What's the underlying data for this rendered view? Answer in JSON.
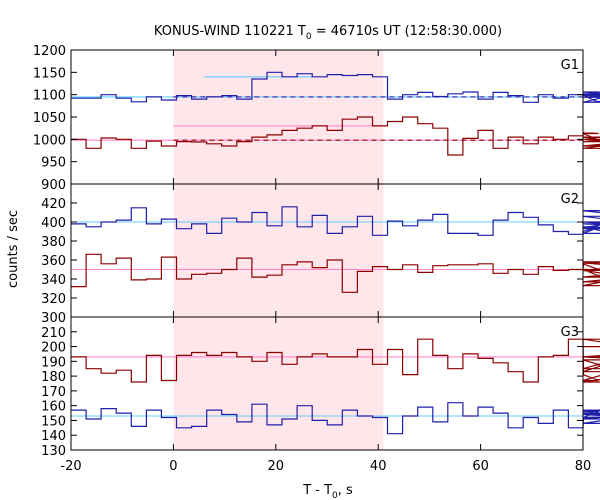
{
  "title": {
    "prefix": "KONUS-WIND 110221 T",
    "sub": "0",
    "suffix": " = 46710s UT (12:58:30.000)"
  },
  "xlabel": {
    "prefix": "T - T",
    "sub": "0",
    "suffix": ", s"
  },
  "ylabel": "counts / sec",
  "colors": {
    "blue": "#1f1fa8",
    "red": "#8b0000",
    "cyan": "#66ccff",
    "pink": "#ff88cc",
    "shade": "#ffe6ea",
    "frame": "#000000"
  },
  "chart_data": [
    {
      "type": "line",
      "panel": "G1",
      "xlim": [
        -20,
        80
      ],
      "ylim": [
        900,
        1200
      ],
      "x_ticks": [
        "-20",
        "0",
        "20",
        "40",
        "60",
        "80"
      ],
      "y_ticks": [
        "900",
        "950",
        "1000",
        "1050",
        "1100",
        "1150",
        "1200"
      ],
      "shaded_interval": [
        0,
        41
      ],
      "series": [
        {
          "color": "blue",
          "step": 2.944,
          "values": [
            1092,
            1092,
            1100,
            1092,
            1084,
            1095,
            1088,
            1098,
            1090,
            1095,
            1098,
            1090,
            1135,
            1150,
            1140,
            1147,
            1140,
            1145,
            1143,
            1145,
            1140,
            1090,
            1100,
            1105,
            1096,
            1102,
            1106,
            1090,
            1105,
            1098,
            1083,
            1100,
            1092,
            1100,
            1099,
            1083,
            1100,
            1094,
            1102,
            1102,
            1098,
            1106,
            1083,
            1100
          ]
        },
        {
          "color": "red",
          "step": 2.944,
          "values": [
            1000,
            980,
            1003,
            1000,
            980,
            996,
            985,
            995,
            994,
            990,
            985,
            995,
            1005,
            1010,
            1020,
            1025,
            1030,
            1020,
            1045,
            1050,
            1030,
            1040,
            1050,
            1035,
            1025,
            965,
            1002,
            1020,
            980,
            1005,
            990,
            1005,
            1000,
            1008,
            1015,
            1013,
            985,
            995,
            1005,
            980,
            1005,
            1000,
            985,
            1000
          ]
        }
      ],
      "ref_lines": [
        {
          "color": "cyan",
          "style": "solid",
          "x": [
            -20,
            80
          ],
          "y": 1095
        },
        {
          "color": "cyan",
          "style": "solid",
          "x": [
            6,
            27
          ],
          "y": 1140
        },
        {
          "color": "blue",
          "style": "dashed",
          "x": [
            0,
            80
          ],
          "y": 1095
        },
        {
          "color": "pink",
          "style": "solid",
          "x": [
            -20,
            80
          ],
          "y": 998
        },
        {
          "color": "pink",
          "style": "solid",
          "x": [
            0,
            41
          ],
          "y": 1030
        },
        {
          "color": "red",
          "style": "dashed",
          "x": [
            0,
            80
          ],
          "y": 998
        }
      ]
    },
    {
      "type": "line",
      "panel": "G2",
      "xlim": [
        -20,
        80
      ],
      "ylim": [
        300,
        440
      ],
      "x_ticks": [
        "-20",
        "0",
        "20",
        "40",
        "60",
        "80"
      ],
      "y_ticks": [
        "300",
        "320",
        "340",
        "360",
        "380",
        "400",
        "420"
      ],
      "shaded_interval": [
        0,
        41
      ],
      "series": [
        {
          "color": "blue",
          "step": 2.944,
          "values": [
            398,
            395,
            400,
            402,
            415,
            398,
            403,
            393,
            398,
            388,
            404,
            400,
            410,
            396,
            416,
            395,
            407,
            388,
            395,
            406,
            386,
            401,
            396,
            402,
            408,
            388,
            388,
            386,
            402,
            410,
            405,
            397,
            390,
            387,
            390,
            395,
            388,
            406,
            398,
            400,
            394,
            412,
            398,
            393
          ]
        },
        {
          "color": "red",
          "step": 2.944,
          "values": [
            332,
            366,
            356,
            362,
            339,
            340,
            363,
            340,
            345,
            346,
            350,
            362,
            342,
            344,
            355,
            358,
            352,
            360,
            326,
            348,
            353,
            350,
            355,
            347,
            354,
            355,
            355,
            356,
            346,
            350,
            345,
            353,
            349,
            350,
            356,
            350,
            337,
            342,
            349,
            357,
            349,
            333,
            358,
            350
          ]
        }
      ],
      "ref_lines": [
        {
          "color": "cyan",
          "style": "solid",
          "x": [
            -20,
            80
          ],
          "y": 400
        },
        {
          "color": "pink",
          "style": "solid",
          "x": [
            -20,
            80
          ],
          "y": 350
        }
      ]
    },
    {
      "type": "line",
      "panel": "G3",
      "xlim": [
        -20,
        80
      ],
      "ylim": [
        130,
        220
      ],
      "x_ticks": [
        "-20",
        "0",
        "20",
        "40",
        "60",
        "80"
      ],
      "y_ticks": [
        "130",
        "140",
        "150",
        "160",
        "170",
        "180",
        "190",
        "200",
        "210"
      ],
      "shaded_interval": [
        0,
        41
      ],
      "series": [
        {
          "color": "blue",
          "step": 2.944,
          "values": [
            157,
            151,
            158,
            155,
            146,
            157,
            152,
            145,
            146,
            157,
            154,
            149,
            161,
            147,
            151,
            160,
            150,
            147,
            157,
            153,
            152,
            141,
            153,
            159,
            149,
            162,
            153,
            159,
            155,
            145,
            152,
            148,
            157,
            145,
            152,
            156,
            157,
            148,
            154,
            151,
            157,
            155,
            152,
            155
          ]
        },
        {
          "color": "red",
          "step": 2.944,
          "values": [
            193,
            185,
            182,
            184,
            176,
            194,
            177,
            194,
            196,
            194,
            196,
            193,
            190,
            196,
            188,
            193,
            195,
            193,
            193,
            198,
            188,
            198,
            181,
            205,
            194,
            185,
            195,
            192,
            189,
            183,
            176,
            193,
            194,
            205,
            181,
            177,
            183,
            193,
            191,
            176,
            185,
            205,
            193,
            200
          ]
        }
      ],
      "ref_lines": [
        {
          "color": "cyan",
          "style": "solid",
          "x": [
            -20,
            80
          ],
          "y": 153
        },
        {
          "color": "pink",
          "style": "solid",
          "x": [
            -20,
            80
          ],
          "y": 193
        }
      ]
    }
  ]
}
